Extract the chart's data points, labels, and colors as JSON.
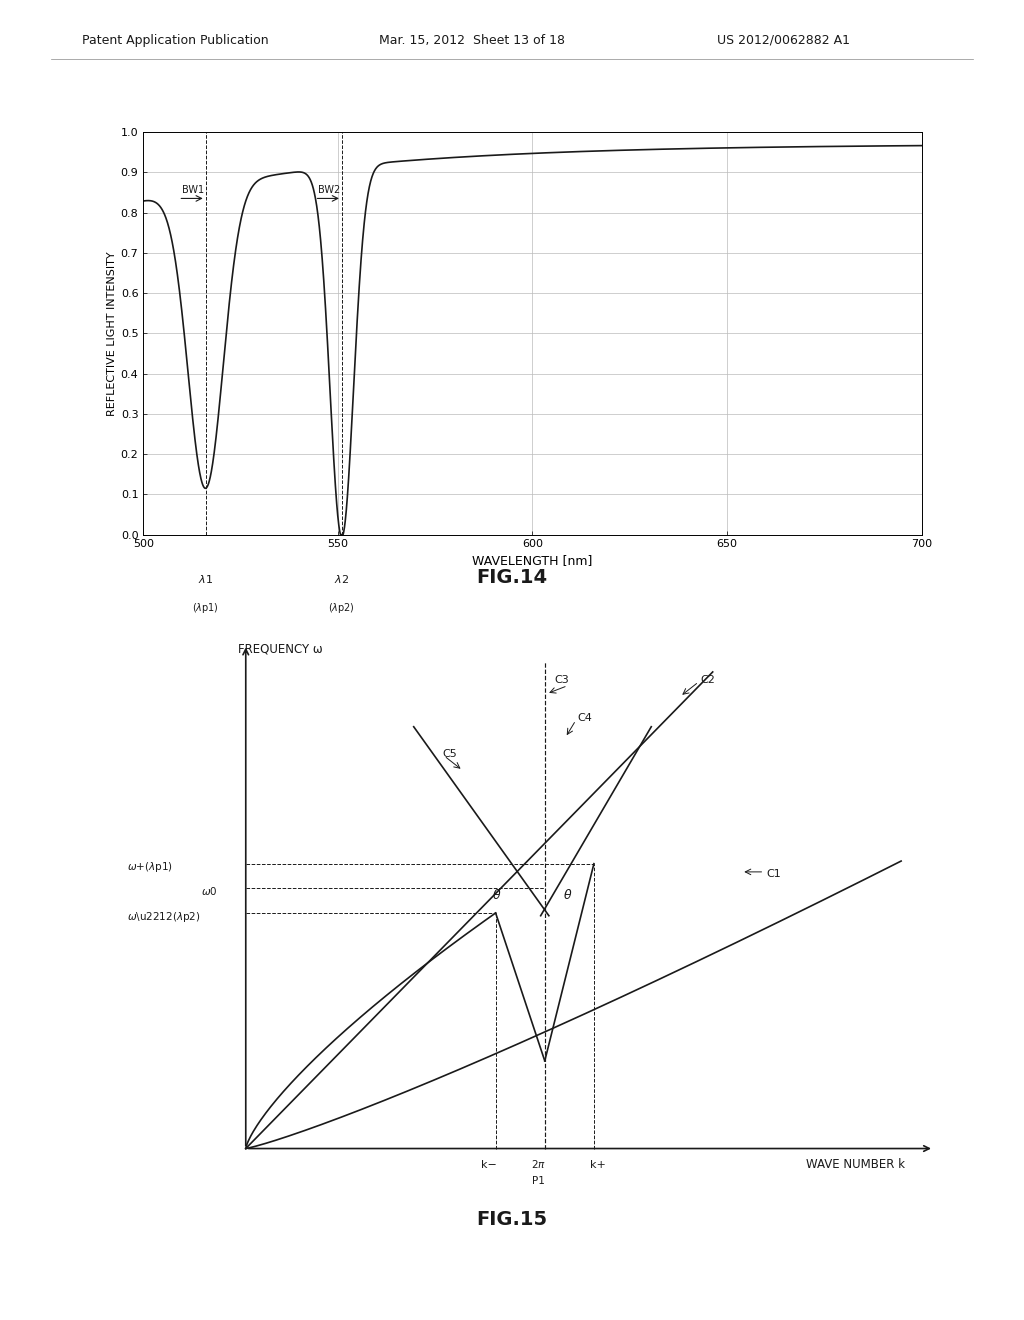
{
  "header_left": "Patent Application Publication",
  "header_mid": "Mar. 15, 2012  Sheet 13 of 18",
  "header_right": "US 2012/0062882 A1",
  "fig14_title": "FIG.14",
  "fig15_title": "FIG.15",
  "fig14_xlabel": "WAVELENGTH [nm]",
  "fig14_ylabel": "REFLECTIVE LIGHT INTENSITY",
  "fig14_xlim": [
    500,
    700
  ],
  "fig14_ylim": [
    0,
    1
  ],
  "fig14_xticks": [
    500,
    550,
    600,
    650,
    700
  ],
  "fig14_yticks": [
    0,
    0.1,
    0.2,
    0.3,
    0.4,
    0.5,
    0.6,
    0.7,
    0.8,
    0.9,
    1
  ],
  "background_color": "#ffffff",
  "line_color": "#1a1a1a",
  "grid_color": "#bbbbbb",
  "text_color": "#1a1a1a"
}
